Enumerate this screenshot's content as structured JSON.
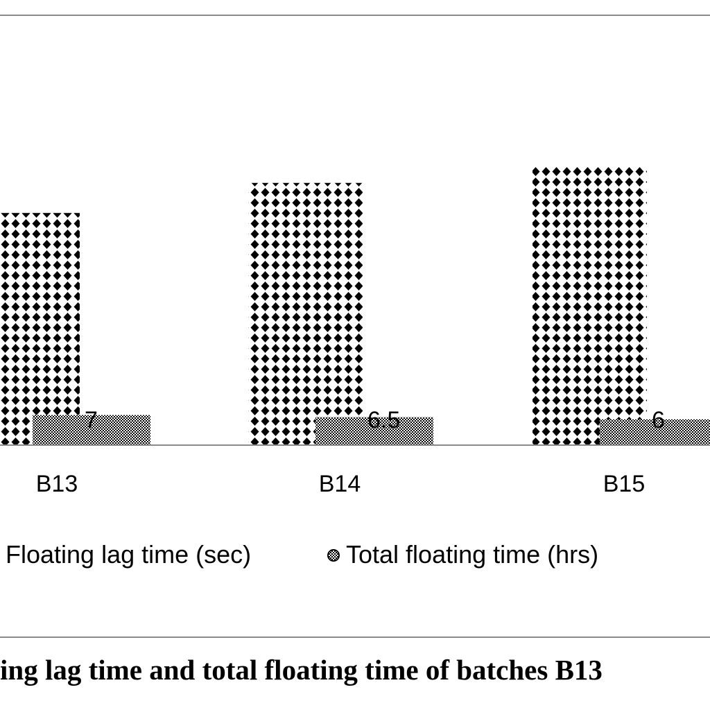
{
  "chart_data": {
    "type": "bar",
    "categories": [
      "B13",
      "B14",
      "B15"
    ],
    "series": [
      {
        "name": "Floating lag time (sec)",
        "values": [
          54,
          61,
          65
        ]
      },
      {
        "name": "Total floating time (hrs)",
        "values": [
          7,
          6.5,
          6
        ]
      }
    ],
    "data_labels": [
      "7",
      "6.5",
      "6"
    ],
    "legend": {
      "placement": "bottom",
      "items": [
        "Floating lag time (sec)",
        "Total floating time (hrs)"
      ]
    },
    "ylim": [
      0,
      100
    ],
    "grid": false
  },
  "caption": "ing lag time and total floating time of batches B13"
}
